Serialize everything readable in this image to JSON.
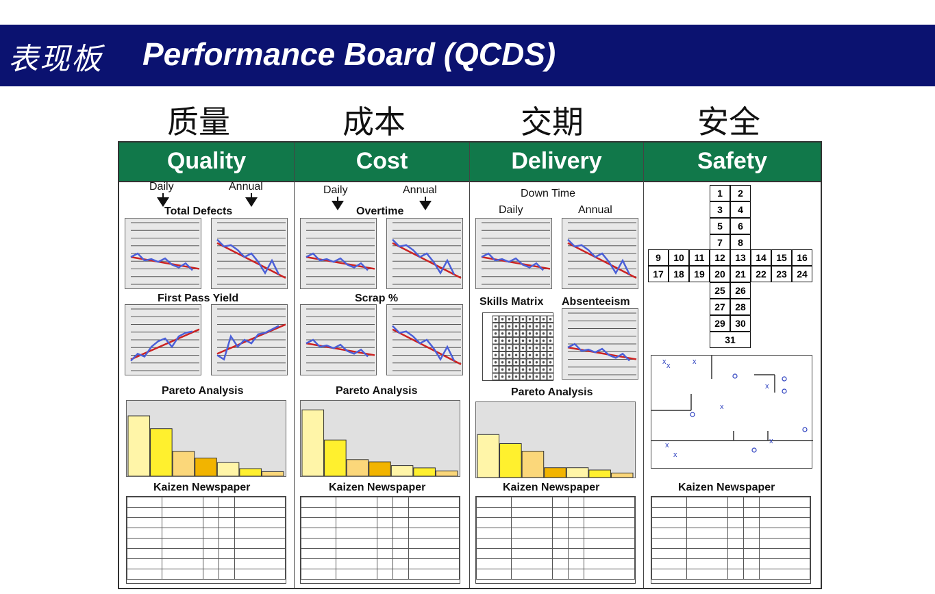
{
  "title_cn": "表现板",
  "title_en": "Performance Board (QCDS)",
  "columns": [
    {
      "cn": "质量",
      "en": "Quality"
    },
    {
      "cn": "成本",
      "en": "Cost"
    },
    {
      "cn": "交期",
      "en": "Delivery"
    },
    {
      "cn": "安全",
      "en": "Safety"
    }
  ],
  "quality": {
    "daily": "Daily",
    "annual": "Annual",
    "chart1": "Total Defects",
    "chart2": "First Pass Yield",
    "pareto": "Pareto Analysis",
    "news": "Kaizen Newspaper"
  },
  "cost": {
    "daily": "Daily",
    "annual": "Annual",
    "chart1": "Overtime",
    "chart2": "Scrap %",
    "pareto": "Pareto Analysis",
    "news": "Kaizen Newspaper"
  },
  "delivery": {
    "top": "Down Time",
    "daily": "Daily",
    "annual": "Annual",
    "skills": "Skills Matrix",
    "absent": "Absenteeism",
    "pareto": "Pareto Analysis",
    "news": "Kaizen Newspaper"
  },
  "safety": {
    "news": "Kaizen Newspaper",
    "cross_numbers": [
      "1",
      "2",
      "3",
      "4",
      "5",
      "6",
      "7",
      "8",
      "9",
      "10",
      "11",
      "12",
      "13",
      "14",
      "15",
      "16",
      "17",
      "18",
      "19",
      "20",
      "21",
      "22",
      "23",
      "24",
      "25",
      "26",
      "27",
      "28",
      "29",
      "30",
      "31"
    ]
  },
  "colors": {
    "banner": "#0b1270",
    "header_green": "#11784a",
    "trend_red": "#cc2222",
    "data_blue": "#4a5fd8"
  },
  "pareto_values": {
    "quality": [
      80,
      63,
      33,
      24,
      18,
      10,
      6
    ],
    "cost": [
      88,
      48,
      22,
      19,
      14,
      11,
      7
    ],
    "delivery": [
      57,
      45,
      35,
      13,
      13,
      10,
      6
    ]
  }
}
